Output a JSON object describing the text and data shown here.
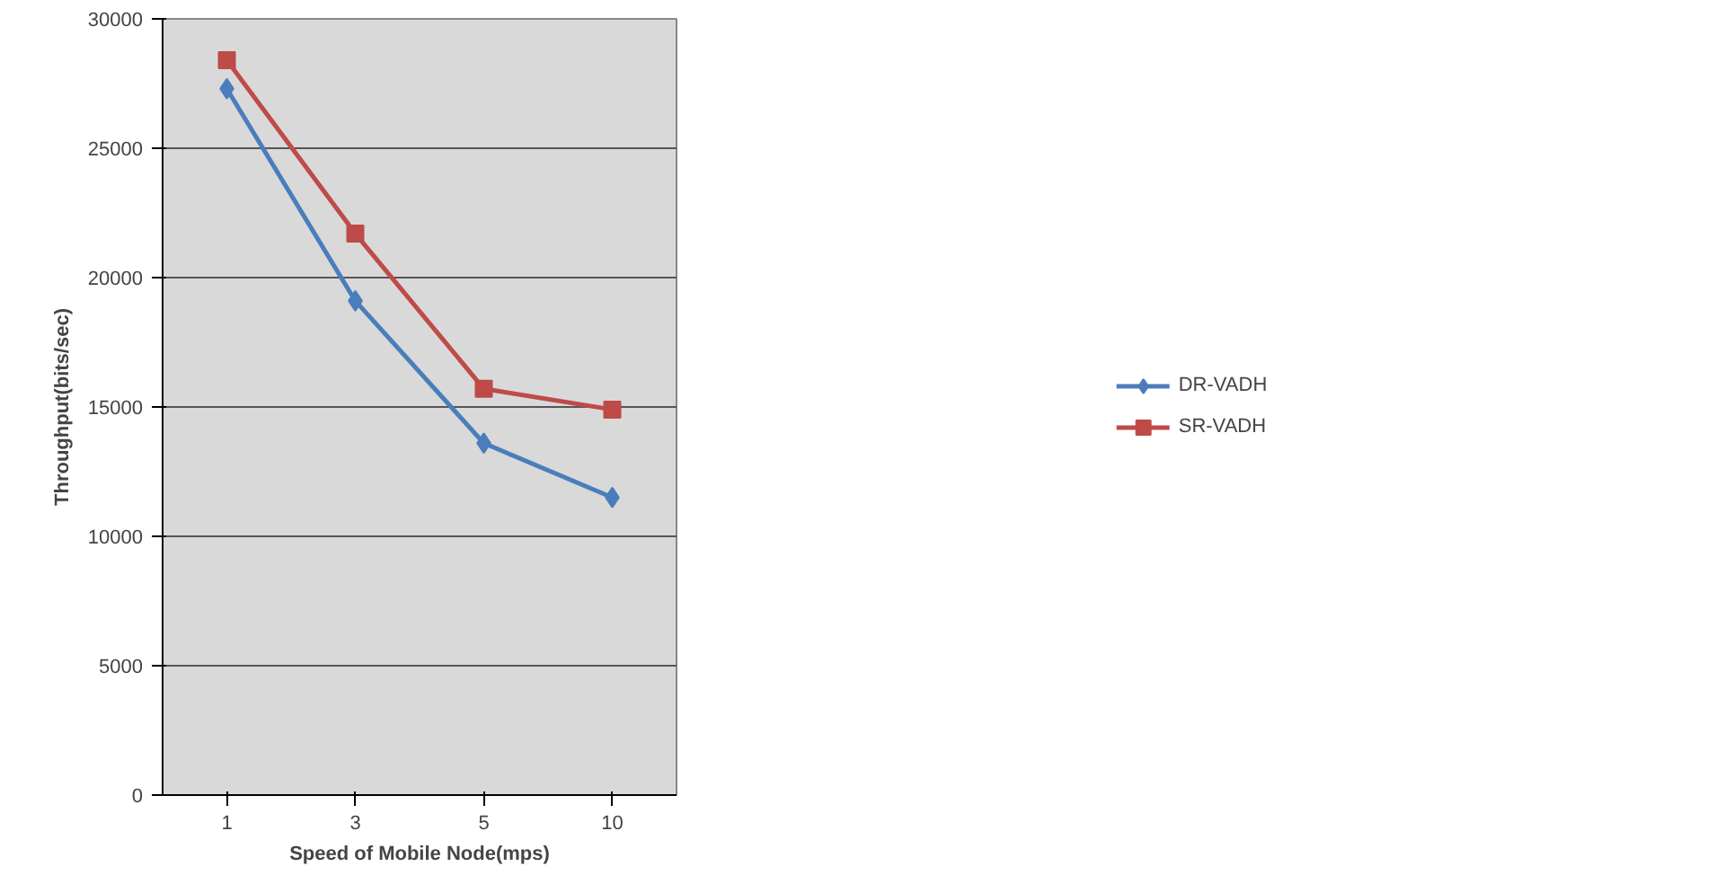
{
  "chart_data": {
    "type": "line",
    "xlabel": "Speed of Mobile Node(mps)",
    "ylabel": "Throughput(bits/sec)",
    "categories": [
      "1",
      "3",
      "5",
      "10"
    ],
    "series": [
      {
        "name": "DR-VADH",
        "color": "#4a7ebb",
        "marker": "diamond",
        "values": [
          27300,
          19100,
          13600,
          11500
        ]
      },
      {
        "name": "SR-VADH",
        "color": "#be4b48",
        "marker": "square",
        "values": [
          28400,
          21700,
          15700,
          14900
        ]
      }
    ],
    "ylim": [
      0,
      30000
    ],
    "yticks": [
      0,
      5000,
      10000,
      15000,
      20000,
      25000,
      30000
    ],
    "grid": "y",
    "legend": "right"
  }
}
